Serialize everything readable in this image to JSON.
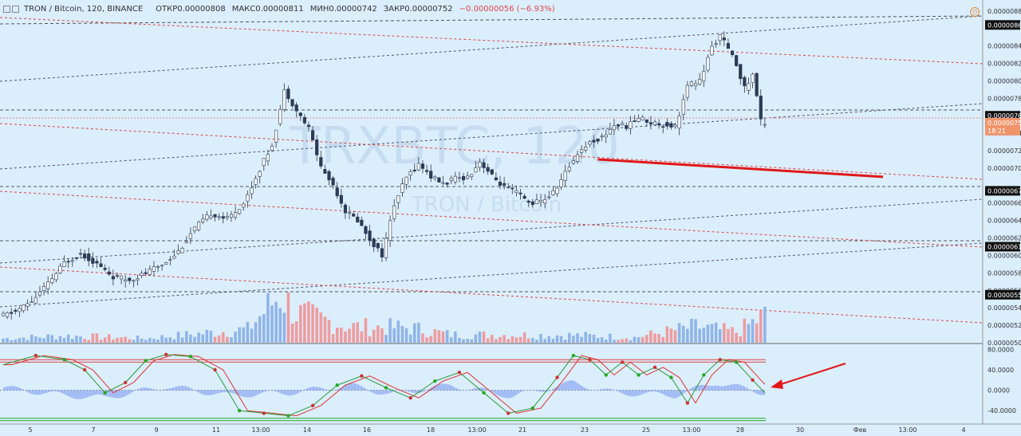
{
  "header": {
    "symbol": "TRON / Bitcoin, 120, BINANCE",
    "open_label": "ОТКР",
    "open": "0.00000808",
    "high_label": "МАКС",
    "high": "0.00000811",
    "low_label": "МИН",
    "low": "0.00000742",
    "close_label": "ЗАКР",
    "close": "0.00000752",
    "change": "−0.00000056 (−6.93%)"
  },
  "watermark": {
    "ticker": "TRXBTC, 120",
    "name": "TRON / Bitcoin"
  },
  "colors": {
    "up": "#3a6fb0",
    "down": "#d85a5a",
    "vol_up": "#8fb4e8",
    "vol_down": "#ee9ca0",
    "bg": "#dbeefc"
  },
  "chart_data": {
    "type": "candlestick",
    "y_axis": {
      "range": [
        5e-06,
        8.88e-06
      ],
      "tick_labels": [
        "0.00000880",
        "0.00000840",
        "0.00000820",
        "0.00000800",
        "0.00000780",
        "0.00000740",
        "0.00000720",
        "0.00000700",
        "0.00000660",
        "0.00000640",
        "0.00000620",
        "0.00000600",
        "0.00000580",
        "0.00000560",
        "0.00000540",
        "0.00000520",
        "0.00000500"
      ],
      "tick_values": [
        880,
        840,
        820,
        800,
        780,
        740,
        720,
        700,
        660,
        640,
        620,
        600,
        580,
        560,
        540,
        520,
        500
      ]
    },
    "price_markers": [
      {
        "label": "0.00000864",
        "value": 864,
        "style": "dark"
      },
      {
        "label": "0.00000760",
        "value": 760,
        "style": "dark"
      },
      {
        "label": "0.00000752",
        "value": 752,
        "style": "orange"
      },
      {
        "label": "18:21",
        "value": 743,
        "style": "orange"
      },
      {
        "label": "0.00000674",
        "value": 674,
        "style": "dark"
      },
      {
        "label": "0.00000610",
        "value": 610,
        "style": "dark"
      },
      {
        "label": "0.00000555",
        "value": 555,
        "style": "dark"
      }
    ],
    "x_axis": {
      "tick_labels": [
        "5",
        "7",
        "9",
        "11",
        "13:00",
        "14",
        "16",
        "18",
        "13:00",
        "21",
        "23",
        "25",
        "13:00",
        "28",
        "30",
        "Фев",
        "13:00",
        "4"
      ]
    },
    "price_path": [
      [
        0,
        530
      ],
      [
        4,
        536
      ],
      [
        8,
        548
      ],
      [
        12,
        568
      ],
      [
        16,
        592
      ],
      [
        20,
        602
      ],
      [
        24,
        590
      ],
      [
        28,
        575
      ],
      [
        32,
        572
      ],
      [
        36,
        580
      ],
      [
        40,
        590
      ],
      [
        44,
        605
      ],
      [
        48,
        632
      ],
      [
        52,
        648
      ],
      [
        56,
        642
      ],
      [
        60,
        660
      ],
      [
        64,
        700
      ],
      [
        67,
        728
      ],
      [
        70,
        790
      ],
      [
        73,
        765
      ],
      [
        76,
        745
      ],
      [
        79,
        700
      ],
      [
        82,
        680
      ],
      [
        85,
        650
      ],
      [
        88,
        640
      ],
      [
        91,
        618
      ],
      [
        94,
        600
      ],
      [
        97,
        660
      ],
      [
        100,
        690
      ],
      [
        103,
        705
      ],
      [
        106,
        690
      ],
      [
        109,
        682
      ],
      [
        112,
        688
      ],
      [
        115,
        690
      ],
      [
        118,
        708
      ],
      [
        121,
        690
      ],
      [
        124,
        678
      ],
      [
        127,
        672
      ],
      [
        130,
        660
      ],
      [
        133,
        662
      ],
      [
        136,
        672
      ],
      [
        139,
        695
      ],
      [
        142,
        718
      ],
      [
        145,
        730
      ],
      [
        148,
        735
      ],
      [
        151,
        750
      ],
      [
        154,
        748
      ],
      [
        157,
        758
      ],
      [
        160,
        752
      ],
      [
        163,
        750
      ],
      [
        166,
        748
      ],
      [
        169,
        795
      ],
      [
        172,
        800
      ],
      [
        175,
        840
      ],
      [
        177,
        852
      ],
      [
        179,
        835
      ],
      [
        181,
        818
      ],
      [
        183,
        790
      ],
      [
        185,
        808
      ],
      [
        187,
        752
      ]
    ],
    "n_candles": 188,
    "volume_profile": [
      [
        0,
        0.08
      ],
      [
        15,
        0.13
      ],
      [
        35,
        0.08
      ],
      [
        60,
        0.25
      ],
      [
        68,
        0.9
      ],
      [
        72,
        0.55
      ],
      [
        85,
        0.3
      ],
      [
        100,
        0.28
      ],
      [
        110,
        0.15
      ],
      [
        140,
        0.14
      ],
      [
        155,
        0.1
      ],
      [
        170,
        0.3
      ],
      [
        180,
        0.2
      ],
      [
        187,
        0.5
      ]
    ],
    "oscillator": {
      "y_tick_labels": [
        "80.0000",
        "40.0000",
        "0.0000",
        "-40.0000"
      ],
      "y_tick_values": [
        80,
        40,
        0,
        -40
      ],
      "range": [
        -60,
        90
      ],
      "upper_band": 60,
      "lower_band": -55,
      "k_path": [
        [
          0,
          50
        ],
        [
          8,
          68
        ],
        [
          15,
          60
        ],
        [
          20,
          40
        ],
        [
          25,
          -5
        ],
        [
          30,
          15
        ],
        [
          35,
          58
        ],
        [
          40,
          70
        ],
        [
          46,
          66
        ],
        [
          52,
          40
        ],
        [
          58,
          -40
        ],
        [
          64,
          -45
        ],
        [
          70,
          -50
        ],
        [
          76,
          -30
        ],
        [
          82,
          10
        ],
        [
          88,
          28
        ],
        [
          94,
          5
        ],
        [
          100,
          -15
        ],
        [
          106,
          18
        ],
        [
          112,
          35
        ],
        [
          118,
          -5
        ],
        [
          124,
          -45
        ],
        [
          130,
          -35
        ],
        [
          136,
          25
        ],
        [
          140,
          68
        ],
        [
          144,
          60
        ],
        [
          148,
          30
        ],
        [
          152,
          55
        ],
        [
          156,
          30
        ],
        [
          160,
          45
        ],
        [
          164,
          25
        ],
        [
          168,
          -25
        ],
        [
          172,
          30
        ],
        [
          176,
          60
        ],
        [
          180,
          55
        ],
        [
          184,
          20
        ],
        [
          187,
          -5
        ]
      ],
      "hist_path": [
        [
          0,
          5
        ],
        [
          15,
          -10
        ],
        [
          25,
          -15
        ],
        [
          40,
          8
        ],
        [
          55,
          -10
        ],
        [
          70,
          -5
        ],
        [
          85,
          10
        ],
        [
          95,
          -8
        ],
        [
          110,
          10
        ],
        [
          125,
          -12
        ],
        [
          140,
          15
        ],
        [
          150,
          -5
        ],
        [
          165,
          -10
        ],
        [
          175,
          15
        ],
        [
          187,
          -5
        ]
      ]
    },
    "annotations": [
      {
        "type": "trend_arrow",
        "note": "red bold line",
        "from": [
          146,
          710
        ],
        "to": [
          216,
          690
        ]
      },
      {
        "type": "pointer_arrow",
        "note": "red arrow pointing at oscillator"
      }
    ]
  }
}
